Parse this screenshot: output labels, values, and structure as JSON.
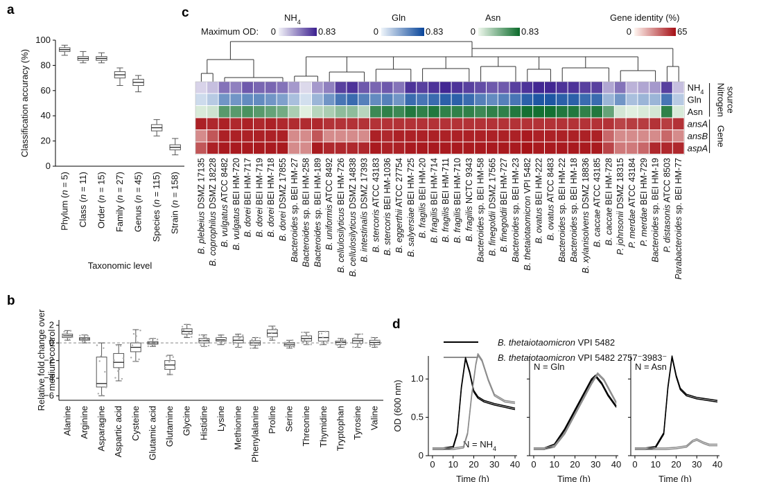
{
  "panels": {
    "a": {
      "label": "a"
    },
    "b": {
      "label": "b"
    },
    "c": {
      "label": "c"
    },
    "d": {
      "label": "d"
    }
  },
  "chart_data": [
    {
      "panel": "a",
      "type": "box",
      "xlabel": "Taxonomic level",
      "ylabel": "Classification accuracy (%)",
      "ylim": [
        0,
        100
      ],
      "yticks": [
        0,
        20,
        40,
        60,
        80,
        100
      ],
      "categories": [
        "Phylum (n = 5)",
        "Class (n = 11)",
        "Order (n = 15)",
        "Family (n = 27)",
        "Genus (n = 45)",
        "Species (n = 115)",
        "Strain (n = 158)"
      ],
      "category_names": [
        "Phylum",
        "Class",
        "Order",
        "Family",
        "Genus",
        "Species",
        "Strain"
      ],
      "category_n": [
        5,
        11,
        15,
        27,
        45,
        115,
        158
      ],
      "boxes": [
        {
          "min": 88,
          "q1": 91,
          "median": 92.5,
          "q3": 94,
          "max": 96
        },
        {
          "min": 82,
          "q1": 84,
          "median": 85.5,
          "q3": 87,
          "max": 91
        },
        {
          "min": 82,
          "q1": 84,
          "median": 85.5,
          "q3": 87,
          "max": 90
        },
        {
          "min": 64,
          "q1": 70,
          "median": 72.5,
          "q3": 75,
          "max": 78
        },
        {
          "min": 59,
          "q1": 64,
          "median": 66.5,
          "q3": 69,
          "max": 72
        },
        {
          "min": 24,
          "q1": 28,
          "median": 30.5,
          "q3": 33,
          "max": 37
        },
        {
          "min": 9,
          "q1": 13,
          "median": 15,
          "q3": 17,
          "max": 22
        }
      ]
    },
    {
      "panel": "b",
      "type": "box",
      "xlabel": "",
      "ylabel": [
        "Relative fold change over",
        "medium control"
      ],
      "ylim": [
        -6.5,
        2.6
      ],
      "yticks": [
        -6,
        -4,
        -2,
        0,
        2
      ],
      "reference_line": 0,
      "categories": [
        "Alanine",
        "Arginine",
        "Asparagine",
        "Aspartic acid",
        "Cysteine",
        "Glutamic acid",
        "Glutamine",
        "Glycine",
        "Histidine",
        "Lysine",
        "Methionine",
        "Phenylalanine",
        "Proline",
        "Serine",
        "Threonine",
        "Thymidine",
        "Tryptophan",
        "Tyrosine",
        "Valine"
      ],
      "boxes": [
        {
          "min": 0.3,
          "q1": 0.6,
          "median": 0.8,
          "q3": 1.0,
          "max": 1.4
        },
        {
          "min": 0.0,
          "q1": 0.3,
          "median": 0.45,
          "q3": 0.6,
          "max": 0.9
        },
        {
          "min": -6.0,
          "q1": -5.0,
          "median": -4.6,
          "q3": -1.6,
          "max": 0.0
        },
        {
          "min": -4.3,
          "q1": -2.8,
          "median": -2.2,
          "q3": -1.2,
          "max": -0.2
        },
        {
          "min": -2.1,
          "q1": -1.0,
          "median": -0.5,
          "q3": 0.0,
          "max": 1.5
        },
        {
          "min": -0.4,
          "q1": -0.15,
          "median": 0.0,
          "q3": 0.15,
          "max": 0.5
        },
        {
          "min": -3.6,
          "q1": -3.0,
          "median": -2.5,
          "q3": -2.0,
          "max": -1.4
        },
        {
          "min": 0.6,
          "q1": 1.0,
          "median": 1.3,
          "q3": 1.6,
          "max": 2.1
        },
        {
          "min": -0.4,
          "q1": 0.0,
          "median": 0.25,
          "q3": 0.5,
          "max": 0.9
        },
        {
          "min": -0.2,
          "q1": 0.2,
          "median": 0.35,
          "q3": 0.6,
          "max": 0.9
        },
        {
          "min": -0.5,
          "q1": 0.0,
          "median": 0.3,
          "q3": 0.7,
          "max": 1.0
        },
        {
          "min": -0.6,
          "q1": -0.25,
          "median": 0.0,
          "q3": 0.25,
          "max": 0.6
        },
        {
          "min": 0.3,
          "q1": 0.7,
          "median": 1.1,
          "q3": 1.5,
          "max": 1.9
        },
        {
          "min": -0.6,
          "q1": -0.35,
          "median": -0.15,
          "q3": 0.05,
          "max": 0.3
        },
        {
          "min": -0.2,
          "q1": 0.2,
          "median": 0.5,
          "q3": 0.8,
          "max": 1.2
        },
        {
          "min": -0.2,
          "q1": 0.2,
          "median": 0.6,
          "q3": 1.3,
          "max": 1.3
        },
        {
          "min": -0.5,
          "q1": -0.2,
          "median": 0.05,
          "q3": 0.2,
          "max": 0.5
        },
        {
          "min": -0.5,
          "q1": -0.05,
          "median": 0.25,
          "q3": 0.5,
          "max": 1.0
        },
        {
          "min": -0.5,
          "q1": -0.2,
          "median": 0.05,
          "q3": 0.3,
          "max": 0.6
        }
      ]
    },
    {
      "panel": "c",
      "type": "heatmap",
      "legend": {
        "max_od_label": "Maximum OD:",
        "scales": [
          {
            "name": "NH",
            "sub": "4",
            "min": "0",
            "max": "0.83",
            "color_low": "#f2f2f8",
            "color_high": "#3b1f8f"
          },
          {
            "name": "Gln",
            "sub": "",
            "min": "0",
            "max": "0.83",
            "color_low": "#eef4fa",
            "color_high": "#08459a"
          },
          {
            "name": "Asn",
            "sub": "",
            "min": "0",
            "max": "0.83",
            "color_low": "#eef7ec",
            "color_high": "#0b6b2b"
          },
          {
            "name": "Gene identity (%)",
            "sub": "",
            "min": "0",
            "max": "65",
            "color_low": "#fff5f0",
            "color_high": "#a50f15"
          }
        ]
      },
      "row_labels": [
        {
          "main": "NH",
          "sub": "4",
          "italic": false
        },
        {
          "main": "Gln",
          "sub": "",
          "italic": false
        },
        {
          "main": "Asn",
          "sub": "",
          "italic": false
        },
        {
          "main": "ansA",
          "sub": "",
          "italic": true
        },
        {
          "main": "ansB",
          "sub": "",
          "italic": true
        },
        {
          "main": "aspA",
          "sub": "",
          "italic": true
        }
      ],
      "row_groups": [
        {
          "label": [
            "Nitrogen",
            "source"
          ],
          "rows": [
            0,
            2
          ]
        },
        {
          "label": [
            "Gene"
          ],
          "rows": [
            3,
            5
          ]
        }
      ],
      "strains": [
        {
          "italic": "B. plebeius",
          "rest": " DSMZ 17135"
        },
        {
          "italic": "B. coprophilus",
          "rest": " DSMZ 18228"
        },
        {
          "italic": "B. vulgatus",
          "rest": " ATCC 8482"
        },
        {
          "italic": "B. vulgatus",
          "rest": " BEI HM-720"
        },
        {
          "italic": "B. dorei",
          "rest": " BEI HM-717"
        },
        {
          "italic": "B. dorei",
          "rest": " BEI HM-719"
        },
        {
          "italic": "B. dorei",
          "rest": " BEI HM-718"
        },
        {
          "italic": "B. dorei",
          "rest": " DSMZ 17855"
        },
        {
          "italic": "Bacteroides",
          "rest": " sp. BEI HM-27"
        },
        {
          "italic": "Bacteroides",
          "rest": " sp. BEI HM-258"
        },
        {
          "italic": "Bacteroides",
          "rest": " sp. BEI HM-189"
        },
        {
          "italic": "B. uniformis",
          "rest": " ATCC 8492"
        },
        {
          "italic": "B. cellulosilyticus",
          "rest": " BEI HM-726"
        },
        {
          "italic": "B. cellulosilyticus",
          "rest": " DSMZ 14838"
        },
        {
          "italic": "B. intestinalis",
          "rest": " DSMZ 17393"
        },
        {
          "italic": "B. stercoris",
          "rest": " ATCC 43183"
        },
        {
          "italic": "B. stercoris",
          "rest": " BEI HM-1036"
        },
        {
          "italic": "B. eggerthii",
          "rest": " ATCC 27754"
        },
        {
          "italic": "B. salyersiae",
          "rest": " BEI HM-725"
        },
        {
          "italic": "B. fragilis",
          "rest": " BEI HM-20"
        },
        {
          "italic": "B. fragilis",
          "rest": " BEI HM-714"
        },
        {
          "italic": "B. fragilis",
          "rest": " BEI HM-711"
        },
        {
          "italic": "B. fragilis",
          "rest": " BEI HM-710"
        },
        {
          "italic": "B. fragilis",
          "rest": " NCTC 9343"
        },
        {
          "italic": "Bacteroides",
          "rest": " sp. BEI HM-58"
        },
        {
          "italic": "B. finegoldii",
          "rest": " DSMZ 17565"
        },
        {
          "italic": "B. finegoldii",
          "rest": " BEI HM-727"
        },
        {
          "italic": "Bacteroides",
          "rest": " sp. BEI HM-23"
        },
        {
          "italic": "B. thetaiotaomicron",
          "rest": " VPI 5482"
        },
        {
          "italic": "B. ovatus",
          "rest": " BEI HM-222"
        },
        {
          "italic": "B. ovatus",
          "rest": " ATCC 8483"
        },
        {
          "italic": "Bacteroides",
          "rest": " sp. BEI HM-22"
        },
        {
          "italic": "Bacteroides",
          "rest": " sp. BEI HM-18"
        },
        {
          "italic": "B. xylanisolvens",
          "rest": " DSMZ 18836"
        },
        {
          "italic": "B. caccae",
          "rest": " ATCC 43185"
        },
        {
          "italic": "B. caccae",
          "rest": " BEI HM-728"
        },
        {
          "italic": "P. johnsonii",
          "rest": " DSMZ 18315"
        },
        {
          "italic": "P. merdae",
          "rest": " ATCC 43184"
        },
        {
          "italic": "P. merdae",
          "rest": " BEI HM-729"
        },
        {
          "italic": "Bacteroides",
          "rest": " sp. BEI HM-19"
        },
        {
          "italic": "P. distasonis",
          "rest": " ATCC 8503"
        },
        {
          "italic": "Parabacteroides",
          "rest": " sp. BEI HM-77"
        }
      ],
      "values": [
        [
          0.12,
          0.2,
          0.5,
          0.45,
          0.6,
          0.55,
          0.55,
          0.5,
          0.35,
          0.1,
          0.35,
          0.45,
          0.7,
          0.75,
          0.6,
          0.55,
          0.6,
          0.5,
          0.75,
          0.7,
          0.75,
          0.8,
          0.75,
          0.7,
          0.65,
          0.6,
          0.6,
          0.7,
          0.75,
          0.8,
          0.8,
          0.75,
          0.75,
          0.7,
          0.7,
          0.3,
          0.5,
          0.25,
          0.3,
          0.35,
          0.7,
          0.2
        ],
        [
          0.12,
          0.2,
          0.45,
          0.45,
          0.5,
          0.5,
          0.45,
          0.4,
          0.25,
          0.1,
          0.3,
          0.45,
          0.6,
          0.65,
          0.55,
          0.5,
          0.55,
          0.45,
          0.65,
          0.6,
          0.65,
          0.7,
          0.7,
          0.65,
          0.55,
          0.5,
          0.55,
          0.6,
          0.7,
          0.75,
          0.75,
          0.7,
          0.7,
          0.65,
          0.65,
          0.3,
          0.45,
          0.25,
          0.3,
          0.3,
          0.6,
          0.2
        ],
        [
          0.08,
          0.12,
          0.55,
          0.55,
          0.6,
          0.55,
          0.5,
          0.45,
          0.25,
          0.05,
          0.2,
          0.25,
          0.35,
          0.35,
          0.2,
          0.65,
          0.7,
          0.65,
          0.75,
          0.7,
          0.75,
          0.7,
          0.7,
          0.7,
          0.65,
          0.7,
          0.7,
          0.75,
          0.8,
          0.8,
          0.8,
          0.75,
          0.75,
          0.7,
          0.75,
          0.5,
          0.1,
          0.05,
          0.08,
          0.1,
          0.7,
          0.08
        ],
        [
          60,
          58,
          60,
          58,
          60,
          58,
          60,
          58,
          57,
          57,
          58,
          55,
          55,
          55,
          55,
          55,
          55,
          55,
          55,
          55,
          55,
          55,
          55,
          55,
          55,
          55,
          55,
          55,
          55,
          55,
          55,
          55,
          55,
          55,
          55,
          55,
          50,
          52,
          52,
          55,
          52,
          55
        ],
        [
          30,
          45,
          60,
          60,
          60,
          60,
          60,
          60,
          30,
          30,
          45,
          30,
          30,
          30,
          30,
          60,
          58,
          60,
          60,
          60,
          60,
          60,
          60,
          60,
          60,
          60,
          60,
          60,
          62,
          60,
          60,
          60,
          60,
          60,
          60,
          40,
          30,
          30,
          30,
          30,
          40,
          30
        ],
        [
          45,
          60,
          62,
          62,
          62,
          62,
          62,
          62,
          30,
          30,
          62,
          58,
          58,
          58,
          58,
          62,
          60,
          60,
          62,
          62,
          62,
          62,
          62,
          62,
          62,
          62,
          62,
          62,
          64,
          62,
          62,
          62,
          62,
          62,
          62,
          50,
          35,
          35,
          40,
          58,
          58,
          58
        ]
      ]
    },
    {
      "panel": "d",
      "type": "line",
      "legend": [
        {
          "italic": "B. thetaiotaomicron",
          "rest": " VPI 5482",
          "color": "#000000"
        },
        {
          "italic": "B. thetaiotaomicron",
          "rest": " VPI 5482 2757⁻3983⁻",
          "color": "#8c8c8c"
        }
      ],
      "ylabel": "OD (600 nm)",
      "xlabel": "Time (h)",
      "xlim": [
        -2,
        41
      ],
      "ylim": [
        0,
        1.3
      ],
      "xticks": [
        0,
        10,
        20,
        30,
        40
      ],
      "yticks": [
        0,
        0.5,
        1.0
      ],
      "ytick_labels": [
        "0",
        "0.5",
        "1.0"
      ],
      "subplots": [
        {
          "annotation_main": "N = NH",
          "annotation_sub": "4",
          "series": [
            {
              "name": "wt",
              "x": [
                0,
                5,
                10,
                12,
                14,
                16,
                18,
                20,
                22,
                25,
                30,
                35,
                40
              ],
              "y": [
                0.1,
                0.1,
                0.12,
                0.3,
                0.9,
                1.28,
                1.1,
                0.85,
                0.77,
                0.72,
                0.68,
                0.65,
                0.62
              ]
            },
            {
              "name": "mutant",
              "x": [
                0,
                5,
                10,
                15,
                17,
                19,
                21,
                22,
                24,
                27,
                30,
                35,
                40
              ],
              "y": [
                0.1,
                0.1,
                0.1,
                0.12,
                0.3,
                0.8,
                1.2,
                1.33,
                1.25,
                1.0,
                0.8,
                0.72,
                0.7
              ]
            }
          ]
        },
        {
          "annotation_main": "N = Gln",
          "annotation_sub": "",
          "series": [
            {
              "name": "wt",
              "x": [
                0,
                5,
                10,
                15,
                20,
                25,
                28,
                30,
                33,
                36,
                40
              ],
              "y": [
                0.1,
                0.1,
                0.15,
                0.35,
                0.6,
                0.85,
                1.0,
                1.05,
                0.95,
                0.8,
                0.65
              ]
            },
            {
              "name": "mutant",
              "x": [
                0,
                5,
                10,
                15,
                20,
                25,
                28,
                31,
                34,
                37,
                40
              ],
              "y": [
                0.1,
                0.1,
                0.13,
                0.3,
                0.55,
                0.8,
                0.95,
                1.08,
                1.0,
                0.85,
                0.7
              ]
            }
          ]
        },
        {
          "annotation_main": "N = Asn",
          "annotation_sub": "",
          "series": [
            {
              "name": "wt",
              "x": [
                0,
                5,
                10,
                14,
                16,
                18,
                20,
                22,
                25,
                30,
                35,
                40
              ],
              "y": [
                0.1,
                0.1,
                0.12,
                0.3,
                0.9,
                1.3,
                1.05,
                0.88,
                0.8,
                0.76,
                0.74,
                0.72
              ]
            },
            {
              "name": "mutant",
              "x": [
                0,
                5,
                10,
                15,
                20,
                25,
                28,
                30,
                33,
                36,
                40
              ],
              "y": [
                0.1,
                0.1,
                0.1,
                0.1,
                0.11,
                0.13,
                0.2,
                0.22,
                0.18,
                0.15,
                0.15
              ]
            }
          ]
        }
      ]
    }
  ]
}
